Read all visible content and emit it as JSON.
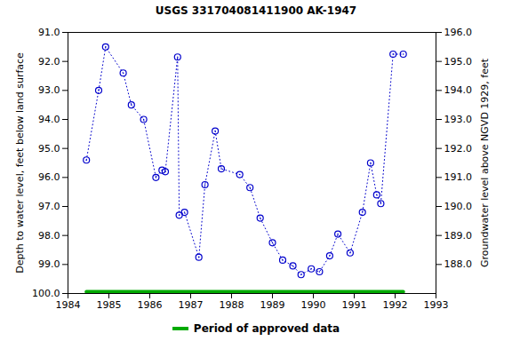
{
  "chart_data": {
    "type": "line",
    "title": "USGS 331704081411900 AK-1947",
    "x_label": null,
    "y_label": "Depth to water level, feet below land surface",
    "y2_label": "Groundwater level above NGVD 1929, feet",
    "xlim": [
      1984,
      1993
    ],
    "xticks": [
      1984,
      1985,
      1986,
      1987,
      1988,
      1989,
      1990,
      1991,
      1992,
      1993
    ],
    "ylim": [
      91,
      100
    ],
    "yticks": [
      {
        "value": 91,
        "label": "91.0"
      },
      {
        "value": 92,
        "label": "92.0"
      },
      {
        "value": 93,
        "label": "93.0"
      },
      {
        "value": 94,
        "label": "94.0"
      },
      {
        "value": 95,
        "label": "95.0"
      },
      {
        "value": 96,
        "label": "96.0"
      },
      {
        "value": 97,
        "label": "97.0"
      },
      {
        "value": 98,
        "label": "98.0"
      },
      {
        "value": 99,
        "label": "99.0"
      },
      {
        "value": 100,
        "label": "100.0"
      }
    ],
    "y2lim": [
      196,
      187
    ],
    "y2ticks": [
      {
        "value": 188,
        "label": "188.0"
      },
      {
        "value": 189,
        "label": "189.0"
      },
      {
        "value": 190,
        "label": "190.0"
      },
      {
        "value": 191,
        "label": "191.0"
      },
      {
        "value": 192,
        "label": "192.0"
      },
      {
        "value": 193,
        "label": "193.0"
      },
      {
        "value": 194,
        "label": "194.0"
      },
      {
        "value": 195,
        "label": "195.0"
      },
      {
        "value": 196,
        "label": "196.0"
      }
    ],
    "grid": false,
    "legend": "bottom",
    "series": [
      {
        "color": "#0000cc",
        "marker": "circle",
        "line_style": "dotted",
        "x": [
          1984.45,
          1984.75,
          1984.92,
          1985.35,
          1985.55,
          1985.85,
          1986.15,
          1986.3,
          1986.38,
          1986.68,
          1986.72,
          1986.85,
          1987.2,
          1987.35,
          1987.6,
          1987.75,
          1988.2,
          1988.45,
          1988.7,
          1989.0,
          1989.25,
          1989.5,
          1989.7,
          1989.95,
          1990.15,
          1990.4,
          1990.6,
          1990.9,
          1991.2,
          1991.4,
          1991.55,
          1991.65,
          1991.95,
          1992.2
        ],
        "values": [
          95.4,
          93.0,
          91.5,
          92.4,
          93.5,
          94.0,
          96.0,
          95.75,
          95.8,
          91.85,
          97.3,
          97.2,
          98.75,
          96.25,
          94.4,
          95.7,
          95.9,
          96.35,
          97.4,
          98.25,
          98.85,
          99.05,
          99.35,
          99.15,
          99.25,
          98.7,
          97.95,
          98.6,
          97.2,
          95.5,
          96.6,
          96.9,
          91.75,
          91.75
        ]
      },
      {
        "name": "Period of approved data",
        "color": "#00aa00",
        "marker": "none",
        "line_style": "solid",
        "x": [
          1984.45,
          1992.2
        ],
        "values": [
          99.94,
          99.94
        ]
      }
    ]
  }
}
